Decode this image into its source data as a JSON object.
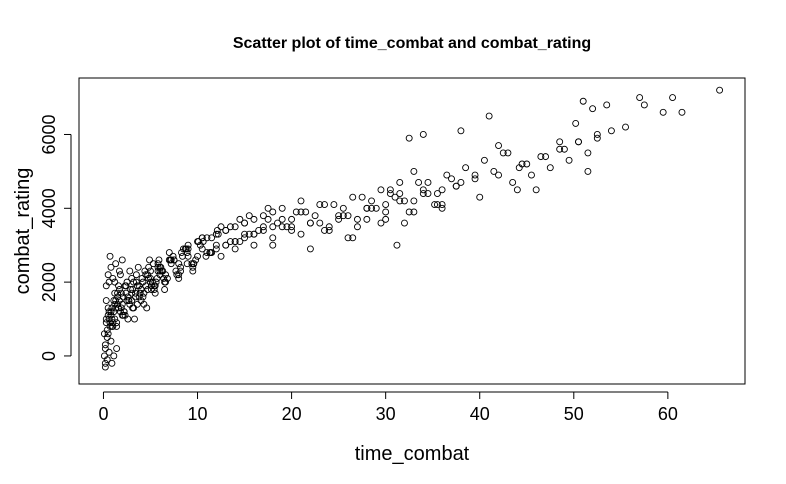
{
  "chart_data": {
    "type": "scatter",
    "title": "Scatter plot of time_combat and combat_rating",
    "xlabel": "time_combat",
    "ylabel": "combat_rating",
    "xlim": [
      -2.6,
      68.2
    ],
    "ylim": [
      -760,
      7530
    ],
    "x_ticks": [
      0,
      10,
      20,
      30,
      40,
      50,
      60
    ],
    "y_ticks": [
      0,
      2000,
      4000,
      6000
    ],
    "grid": false,
    "legend": "none",
    "colors": {
      "points": "#000000",
      "axes": "#000000",
      "background": "#ffffff"
    },
    "series": [
      {
        "x": [
          0.1,
          0.3,
          0.5,
          0.7,
          0.9,
          1.2,
          1.5,
          1.8,
          2.1,
          2.5,
          0.2,
          0.4,
          0.6,
          0.8,
          1.0,
          1.3,
          1.6,
          2.0,
          2.4,
          2.8,
          0.3,
          0.6,
          0.9,
          1.2,
          1.5,
          1.9,
          2.3,
          2.7,
          3.1,
          3.5,
          0.4,
          0.8,
          1.1,
          1.4,
          1.7,
          2.2,
          2.6,
          3.0,
          3.4,
          3.8,
          0.5,
          1.0,
          1.5,
          2.0,
          2.5,
          3.0,
          3.5,
          4.0,
          4.5,
          5.0,
          0.2,
          0.7,
          1.3,
          1.9,
          2.6,
          3.2,
          3.8,
          4.4,
          5.1,
          5.7,
          0.1,
          0.5,
          1.1,
          1.7,
          2.3,
          2.9,
          3.6,
          4.2,
          4.8,
          5.5,
          0.3,
          0.9,
          1.6,
          2.2,
          2.8,
          3.4,
          4.1,
          4.7,
          5.3,
          6.0,
          0.6,
          1.2,
          1.8,
          2.4,
          3.1,
          3.7,
          4.3,
          4.9,
          5.6,
          6.2,
          0.2,
          0.8,
          1.4,
          2.1,
          2.7,
          3.3,
          3.9,
          4.6,
          5.2,
          5.9,
          3.0,
          3.6,
          4.2,
          4.8,
          5.4,
          6.0,
          6.6,
          7.2,
          7.8,
          8.4,
          3.2,
          3.9,
          4.5,
          5.1,
          5.8,
          6.4,
          7.0,
          7.7,
          8.3,
          8.9,
          4.0,
          4.7,
          5.4,
          6.1,
          6.8,
          7.5,
          8.2,
          8.9,
          9.6,
          10.3,
          4.3,
          5.0,
          5.8,
          6.5,
          7.2,
          8.0,
          8.7,
          9.4,
          10.1,
          10.9,
          5.0,
          5.8,
          6.6,
          7.4,
          8.2,
          9.0,
          9.8,
          10.6,
          11.4,
          12.2,
          5.5,
          6.3,
          7.1,
          8.0,
          8.8,
          9.6,
          10.5,
          11.3,
          12.1,
          13.0,
          6.0,
          7.0,
          8.0,
          9.0,
          10.0,
          11.0,
          12.0,
          13.0,
          14.0,
          15.0,
          6.5,
          7.5,
          8.5,
          9.5,
          10.5,
          11.5,
          12.5,
          13.5,
          14.5,
          15.5,
          9.0,
          10.0,
          11.0,
          12.0,
          13.0,
          14.0,
          15.0,
          16.0,
          17.0,
          18.0,
          9.5,
          10.5,
          11.5,
          12.5,
          13.5,
          14.5,
          15.5,
          16.5,
          17.5,
          18.5,
          12.0,
          13.0,
          14.0,
          15.0,
          16.0,
          17.0,
          18.0,
          19.0,
          20.0,
          21.0,
          14.0,
          15.0,
          16.0,
          17.0,
          18.0,
          19.0,
          20.0,
          21.0,
          22.0,
          23.0,
          16.0,
          17.5,
          19.0,
          20.5,
          22.0,
          23.5,
          25.0,
          26.5,
          28.0,
          29.5,
          18.0,
          19.5,
          21.0,
          22.5,
          24.0,
          25.5,
          27.0,
          28.5,
          30.0,
          31.5,
          20.0,
          21.5,
          23.0,
          24.5,
          26.0,
          27.5,
          29.0,
          30.5,
          32.0,
          33.5,
          22.0,
          23.5,
          25.0,
          26.5,
          28.0,
          29.5,
          31.0,
          32.5,
          34.0,
          35.5,
          24.0,
          25.5,
          27.0,
          28.5,
          30.0,
          31.5,
          33.0,
          34.5,
          36.0,
          37.5,
          26.0,
          28.0,
          30.0,
          32.0,
          34.0,
          36.0,
          38.0,
          40.0,
          42.0,
          44.0,
          33.0,
          34.5,
          35.5,
          36.5,
          37.5,
          38.5,
          39.5,
          40.5,
          41.5,
          42.5,
          43.5,
          44.5,
          45.5,
          46.5,
          47.5,
          48.5,
          49.5,
          50.5,
          51.5,
          52.5,
          0.2,
          0.4,
          0.6,
          0.9,
          1.1,
          1.4,
          0.3,
          0.5,
          0.8,
          1.0,
          1.3,
          1.7,
          2.0,
          0.7,
          1.2,
          31.2,
          32.5,
          34.0,
          35.2,
          38.0,
          41.0,
          44.2,
          46.0,
          48.5,
          50.2,
          51.0,
          52.0,
          53.5,
          55.5,
          57.0,
          57.5,
          59.5,
          60.5,
          61.5,
          65.5,
          30.5,
          31.5,
          33.0,
          36.0,
          37.0,
          39.5,
          42.0,
          43.0,
          45.0,
          47.0,
          49.0,
          50.5,
          51.5,
          52.5,
          54.0
        ],
        "y": [
          600,
          900,
          1100,
          800,
          1300,
          1000,
          1400,
          1200,
          1600,
          1500,
          300,
          700,
          1000,
          1200,
          900,
          1500,
          1300,
          1100,
          1700,
          1400,
          1000,
          1200,
          800,
          1400,
          1700,
          1300,
          1900,
          1500,
          1800,
          2000,
          500,
          1100,
          1500,
          900,
          1800,
          1200,
          1600,
          2100,
          1700,
          1900,
          1300,
          800,
          1600,
          1400,
          2000,
          1700,
          2200,
          1500,
          1900,
          2300,
          200,
          900,
          1300,
          1700,
          1000,
          2000,
          1600,
          2300,
          1800,
          2100,
          0,
          600,
          1200,
          1500,
          1100,
          1800,
          1400,
          2000,
          2400,
          1900,
          1500,
          1000,
          1900,
          1200,
          2300,
          1600,
          2100,
          1800,
          2500,
          2200,
          2000,
          1700,
          2200,
          1900,
          1300,
          2400,
          1700,
          2600,
          2000,
          2300,
          -200,
          400,
          800,
          1100,
          1500,
          1000,
          1700,
          1300,
          2000,
          2600,
          1500,
          1900,
          1600,
          2100,
          1800,
          2300,
          2000,
          2500,
          2200,
          2700,
          1300,
          1700,
          2200,
          1900,
          2400,
          2100,
          2600,
          2300,
          2800,
          2500,
          1800,
          2200,
          1900,
          2400,
          2100,
          2600,
          2300,
          2800,
          2500,
          3000,
          1400,
          2000,
          2300,
          1800,
          2600,
          2200,
          2900,
          2500,
          3100,
          2700,
          2100,
          2500,
          2200,
          2700,
          2400,
          2900,
          2600,
          3100,
          2800,
          3300,
          1700,
          2300,
          2600,
          2100,
          2900,
          2500,
          3200,
          2800,
          3400,
          3000,
          2400,
          2800,
          2500,
          3000,
          2700,
          3200,
          2900,
          3400,
          3100,
          3600,
          2000,
          2600,
          2900,
          2400,
          3200,
          2800,
          3500,
          3100,
          3700,
          3300,
          2700,
          3100,
          2800,
          3300,
          3000,
          3500,
          3200,
          3700,
          3400,
          3900,
          2300,
          2900,
          3200,
          2700,
          3500,
          3100,
          3800,
          3400,
          4000,
          3600,
          3000,
          3400,
          3100,
          3600,
          3300,
          3800,
          3500,
          4000,
          3700,
          4200,
          2900,
          3300,
          3000,
          3500,
          3200,
          3700,
          3400,
          3900,
          3600,
          4100,
          3300,
          3700,
          3500,
          3900,
          3600,
          4100,
          3800,
          4300,
          4000,
          4500,
          3000,
          3500,
          3300,
          3800,
          3500,
          4000,
          3700,
          4200,
          3900,
          4400,
          3500,
          3900,
          3600,
          4100,
          3800,
          4300,
          4000,
          4500,
          4200,
          4700,
          2900,
          3400,
          3700,
          3200,
          4000,
          3600,
          4300,
          3900,
          4500,
          4100,
          3400,
          3800,
          3500,
          4000,
          3700,
          4200,
          3900,
          4400,
          4100,
          4600,
          3200,
          3700,
          4100,
          3600,
          4400,
          4000,
          4700,
          4300,
          4900,
          4500,
          4200,
          4700,
          4400,
          4900,
          4600,
          5100,
          4800,
          5300,
          5000,
          5500,
          4700,
          5200,
          4900,
          5400,
          5100,
          5600,
          5300,
          5800,
          5500,
          6000,
          -300,
          -100,
          100,
          -200,
          0,
          200,
          1900,
          2200,
          2400,
          2100,
          2500,
          2300,
          2600,
          2700,
          2000,
          3000,
          5900,
          6000,
          4100,
          6100,
          6500,
          5100,
          4500,
          5800,
          6300,
          6900,
          6700,
          6800,
          6200,
          7000,
          6800,
          6600,
          7000,
          6600,
          7200,
          4400,
          4700,
          5000,
          4500,
          4800,
          4900,
          5700,
          5500,
          5200,
          5400,
          5600,
          5800,
          5000,
          5900,
          6100
        ]
      }
    ]
  }
}
